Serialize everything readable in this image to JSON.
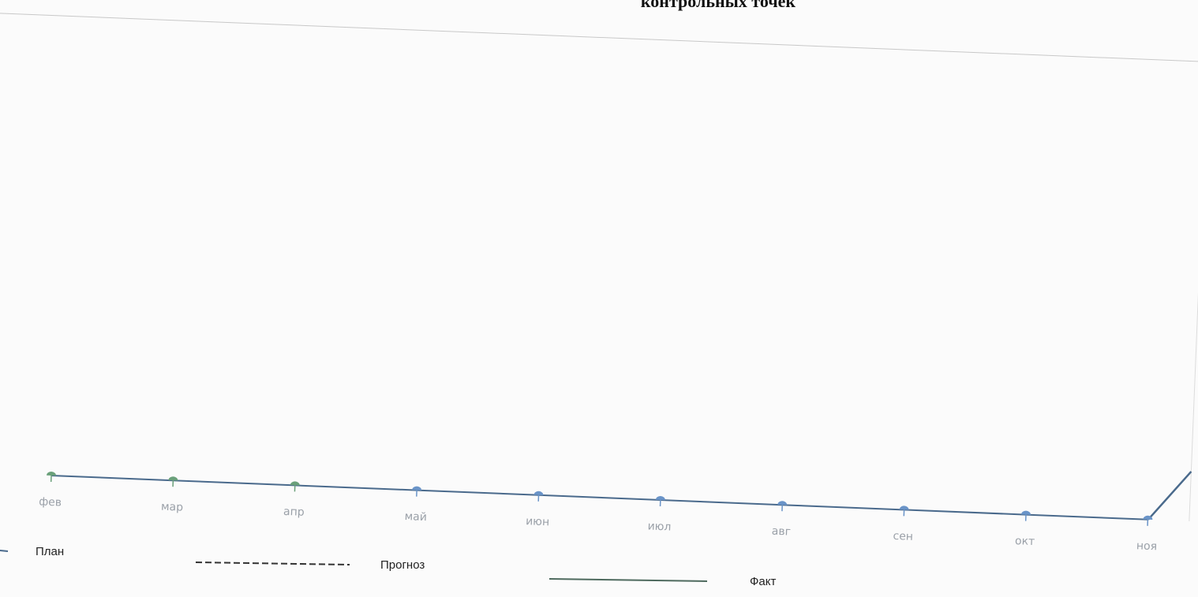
{
  "chart_data": {
    "type": "line",
    "title": "контрольных точек",
    "categories": [
      "фев",
      "мар",
      "апр",
      "май",
      "июн",
      "июл",
      "авг",
      "сен",
      "окт",
      "ноя"
    ],
    "series": [
      {
        "name": "План",
        "color": "#4a6a8c",
        "style": "solid",
        "values": [
          0,
          0,
          0,
          0,
          0,
          0,
          0,
          0,
          0,
          0
        ],
        "marker_colors": [
          "#6aa07a",
          "#6aa07a",
          "#6aa07a",
          "#6a94c8",
          "#6a94c8",
          "#6a94c8",
          "#6a94c8",
          "#6a94c8",
          "#6a94c8",
          "#6a94c8"
        ]
      },
      {
        "name": "Прогноз",
        "color": "#333333",
        "style": "dashed",
        "values": [
          null,
          null,
          null,
          null,
          null,
          null,
          null,
          null,
          null,
          null
        ]
      },
      {
        "name": "Факт",
        "color": "#4e6a5e",
        "style": "solid",
        "values": [
          null,
          null,
          null,
          null,
          null,
          null,
          null,
          null,
          null,
          null
        ]
      }
    ]
  }
}
